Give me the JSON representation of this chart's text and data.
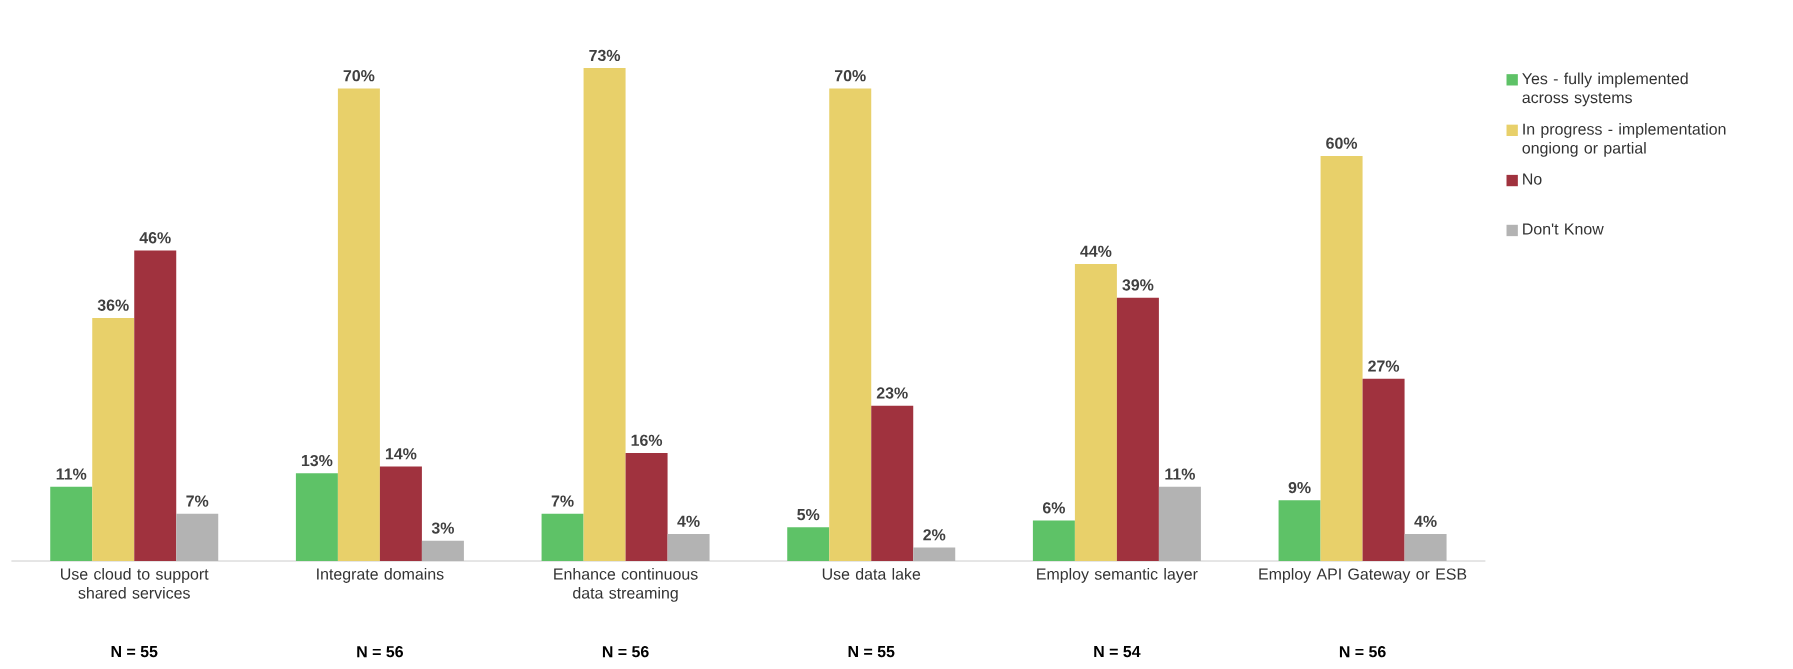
{
  "chart_data": {
    "type": "bar",
    "legend": "right",
    "categories": [
      "Use cloud to support shared services",
      "Integrate domains",
      "Enhance continuous data streaming",
      "Use data lake",
      "Employ semantic layer",
      "Employ API Gateway or ESB"
    ],
    "series": [
      {
        "name": "Yes - fully implemented across systems",
        "color": "#5ec267",
        "values": [
          11,
          13,
          7,
          5,
          6,
          9
        ],
        "value_labels": [
          "11%",
          "13%",
          "7%",
          "5%",
          "6%",
          "9%"
        ]
      },
      {
        "name": "In progress - implementation ongiong or partial",
        "color": "#e8d06a",
        "values": [
          36,
          70,
          73,
          70,
          44,
          60
        ],
        "value_labels": [
          "36%",
          "70%",
          "73%",
          "70%",
          "44%",
          "60%"
        ]
      },
      {
        "name": "No",
        "color": "#a0323e",
        "values": [
          46,
          14,
          16,
          23,
          39,
          27
        ],
        "value_labels": [
          "46%",
          "14%",
          "16%",
          "23%",
          "39%",
          "27%"
        ]
      },
      {
        "name": "Don't Know",
        "color": "#b3b3b3",
        "values": [
          7,
          3,
          4,
          2,
          11,
          4
        ],
        "value_labels": [
          "7%",
          "3%",
          "4%",
          "2%",
          "11%",
          "4%"
        ]
      }
    ],
    "annotations": [
      "N = 55",
      "N = 56",
      "N = 56",
      "N = 55",
      "N = 54",
      "N = 56"
    ]
  }
}
